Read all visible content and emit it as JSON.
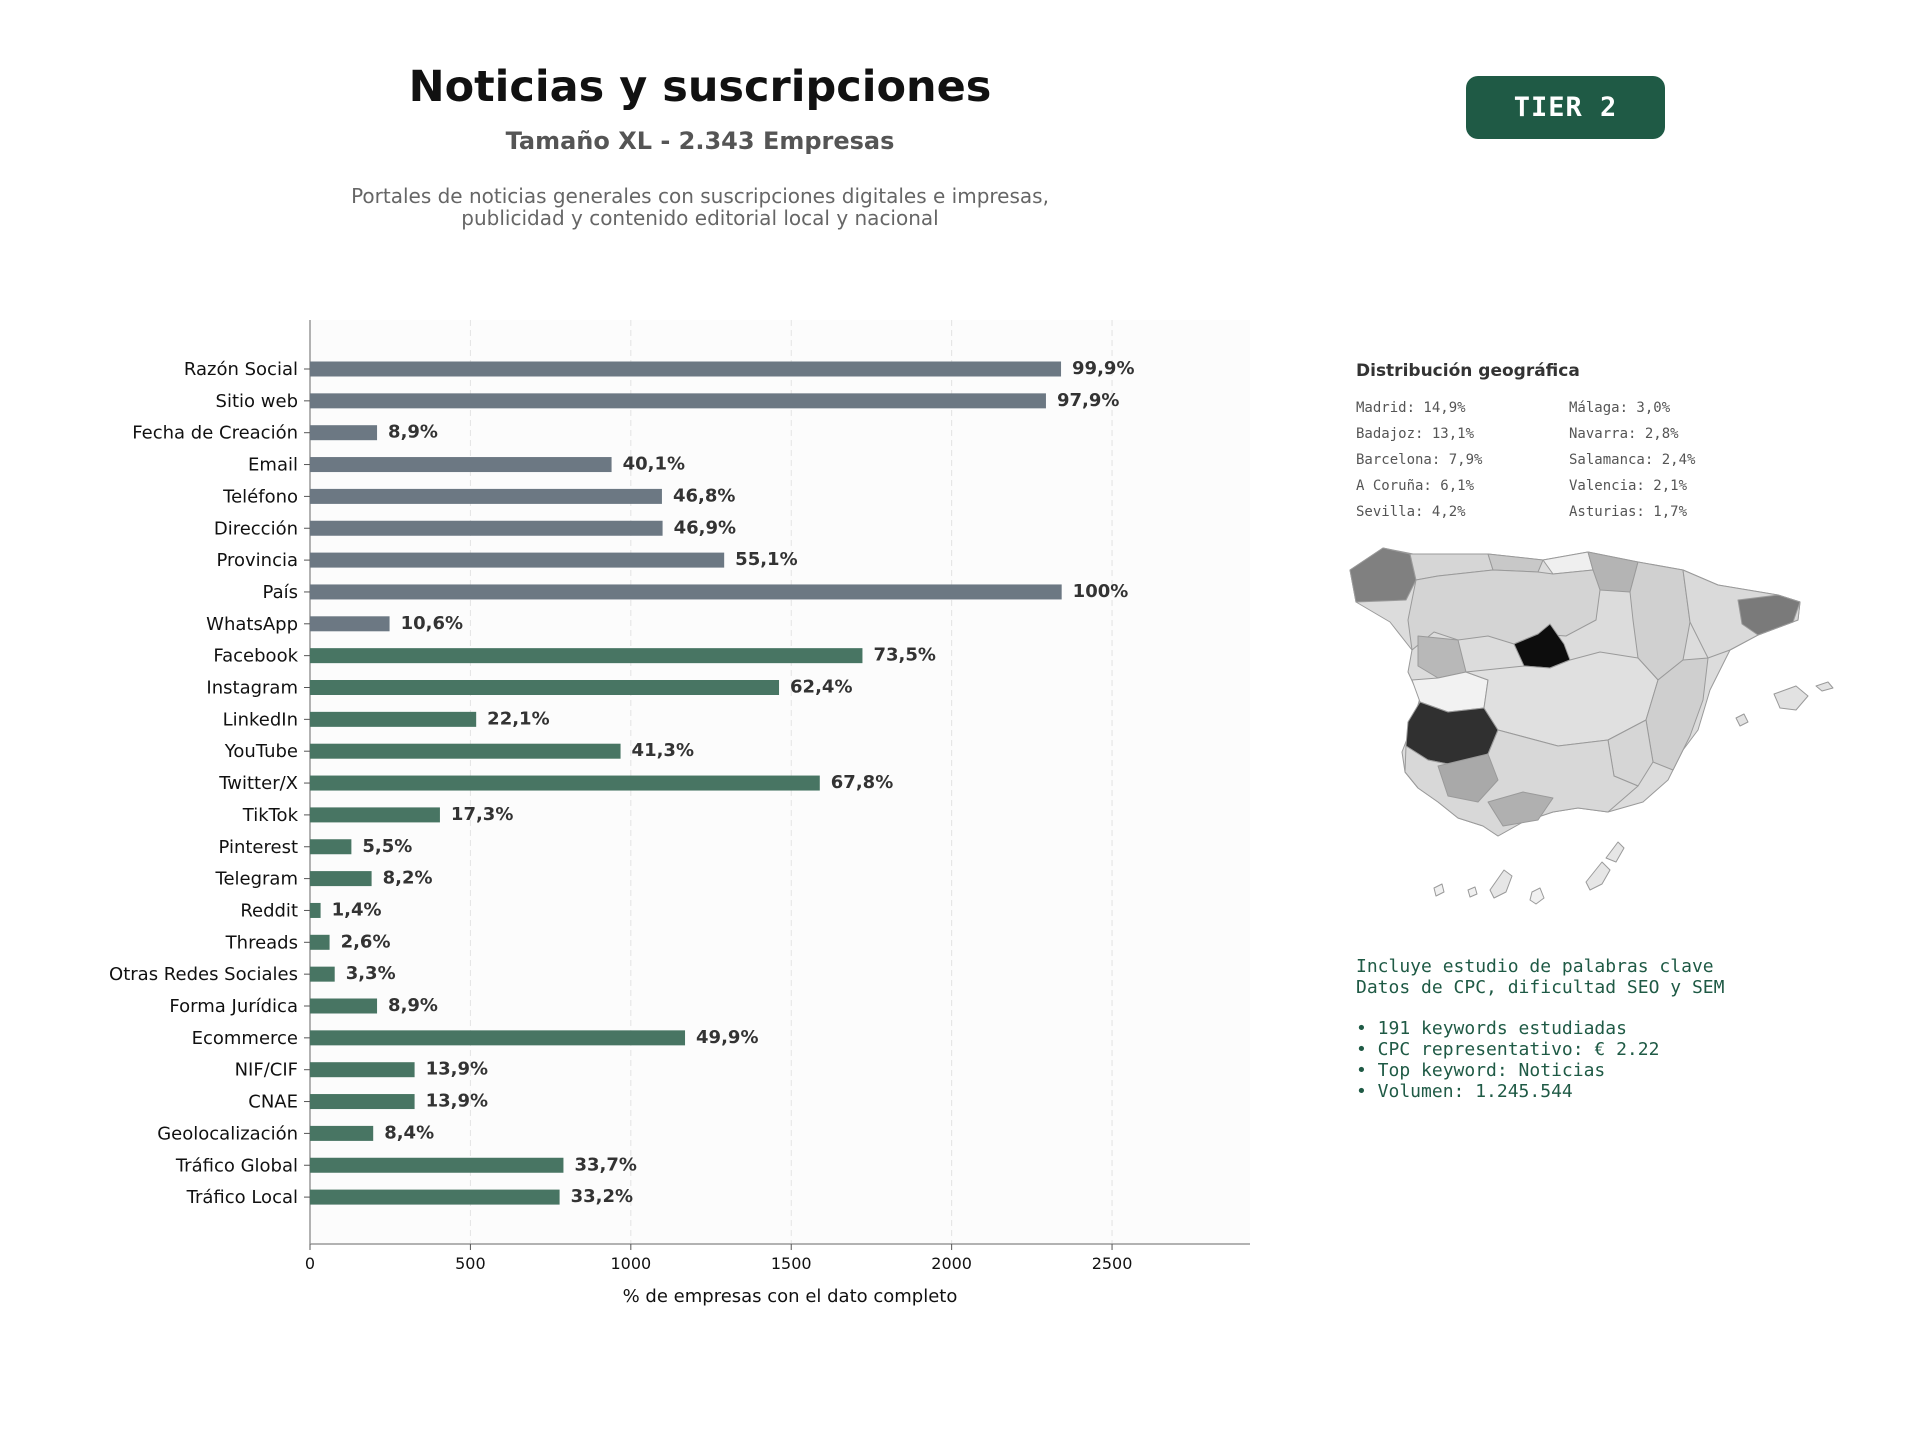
{
  "header": {
    "title": "Noticias y suscripciones",
    "subtitle": "Tamaño XL - 2.343 Empresas",
    "description_line1": "Portales de noticias generales con suscripciones digitales e impresas,",
    "description_line2": "publicidad y contenido editorial local y nacional",
    "tier_badge": "TIER 2"
  },
  "colors": {
    "gray_bar": "#6c7883",
    "green_bar": "#487563",
    "accent": "#1f5a45"
  },
  "chart_data": {
    "type": "bar",
    "orientation": "horizontal",
    "xlabel": "% de empresas con el dato completo",
    "ylabel": "",
    "xlim": [
      0,
      2930
    ],
    "xticks": [
      0,
      500,
      1000,
      1500,
      2000,
      2500
    ],
    "grid": "vertical dashed",
    "categories": [
      "Razón Social",
      "Sitio web",
      "Fecha de Creación",
      "Email",
      "Teléfono",
      "Dirección",
      "Provincia",
      "País",
      "WhatsApp",
      "Facebook",
      "Instagram",
      "LinkedIn",
      "YouTube",
      "Twitter/X",
      "TikTok",
      "Pinterest",
      "Telegram",
      "Reddit",
      "Threads",
      "Otras Redes Sociales",
      "Forma Jurídica",
      "Ecommerce",
      "NIF/CIF",
      "CNAE",
      "Geolocalización",
      "Tráfico Global",
      "Tráfico Local"
    ],
    "values": [
      2341,
      2294,
      209,
      940,
      1097,
      1099,
      1291,
      2343,
      248,
      1722,
      1462,
      518,
      968,
      1589,
      405,
      129,
      192,
      33,
      61,
      77,
      209,
      1169,
      326,
      326,
      197,
      790,
      778
    ],
    "labels": [
      "99,9%",
      "97,9%",
      "8,9%",
      "40,1%",
      "46,8%",
      "46,9%",
      "55,1%",
      "100%",
      "10,6%",
      "73,5%",
      "62,4%",
      "22,1%",
      "41,3%",
      "67,8%",
      "17,3%",
      "5,5%",
      "8,2%",
      "1,4%",
      "2,6%",
      "3,3%",
      "8,9%",
      "49,9%",
      "13,9%",
      "13,9%",
      "8,4%",
      "33,7%",
      "33,2%"
    ],
    "groups": [
      "gray",
      "gray",
      "gray",
      "gray",
      "gray",
      "gray",
      "gray",
      "gray",
      "gray",
      "green",
      "green",
      "green",
      "green",
      "green",
      "green",
      "green",
      "green",
      "green",
      "green",
      "green",
      "green",
      "green",
      "green",
      "green",
      "green",
      "green",
      "green"
    ]
  },
  "geo": {
    "title": "Distribución geográfica",
    "items": [
      "Madrid: 14,9%",
      "Málaga: 3,0%",
      "Badajoz: 13,1%",
      "Navarra: 2,8%",
      "Barcelona: 7,9%",
      "Salamanca: 2,4%",
      "A Coruña: 6,1%",
      "Valencia: 2,1%",
      "Sevilla: 4,2%",
      "Asturias: 1,7%"
    ]
  },
  "keywords": {
    "line1": "Incluye estudio de palabras clave",
    "line2": "Datos de CPC, dificultad SEO y SEM",
    "bullets": [
      "• 191 keywords estudiadas",
      "• CPC representativo: € 2.22",
      "• Top keyword: Noticias",
      "• Volumen: 1.245.544"
    ]
  }
}
